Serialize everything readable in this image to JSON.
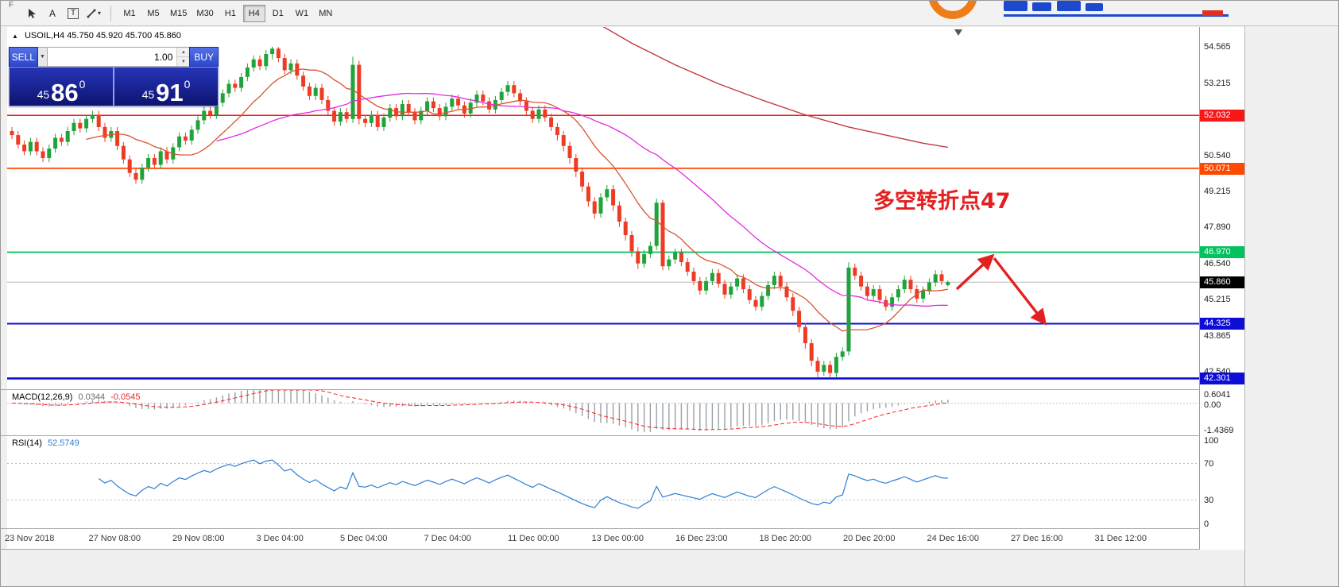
{
  "toolbar": {
    "partial_glyph": "F",
    "text_tool_glyph": "A",
    "label_tool_glyph": "T",
    "shapes_caret": "▾",
    "timeframes": [
      "M1",
      "M5",
      "M15",
      "M30",
      "H1",
      "H4",
      "D1",
      "W1",
      "MN"
    ],
    "active_timeframe": "H4"
  },
  "icons": {
    "collapse": "▲",
    "caret_down": "▼",
    "spin_up": "▲",
    "spin_down": "▼"
  },
  "symbol_header": "USOIL,H4 45.750 45.920 45.700 45.860",
  "one_click": {
    "sell_label": "SELL",
    "buy_label": "BUY",
    "volume": "1.00",
    "bid_small": "45",
    "bid_big": "86",
    "bid_sup": "0",
    "ask_small": "45",
    "ask_big": "91",
    "ask_sup": "0"
  },
  "chart_data": {
    "type": "candlestick",
    "symbol": "USOIL",
    "timeframe": "H4",
    "y_range": [
      41.9,
      55.3
    ],
    "y_ticks": [
      54.565,
      53.215,
      50.54,
      49.215,
      47.89,
      46.54,
      45.215,
      43.865,
      42.54
    ],
    "levels": [
      {
        "price": 52.032,
        "label": "52.032",
        "color": "#f81616",
        "width": 1.5
      },
      {
        "price": 50.071,
        "label": "50.071",
        "color": "#ff4800",
        "width": 1.8
      },
      {
        "price": 46.97,
        "label": "46.970",
        "color": "#00c25e",
        "width": 1.8
      },
      {
        "price": 44.325,
        "label": "44.325",
        "color": "#0d0dd6",
        "width": 2
      },
      {
        "price": 42.301,
        "label": "42.301",
        "color": "#0d0dd6",
        "width": 2.6
      }
    ],
    "current_price": {
      "price": 45.86,
      "label": "45.860",
      "line_color": "#b8b8b8",
      "box_color": "#000000"
    },
    "colors": {
      "up": "#1fa33a",
      "down": "#ee3b24",
      "ma_fast": "#d9542e",
      "ma_mid": "#e32ae3",
      "ma_long": "#c03a3a"
    },
    "shift_marker": {
      "x": 1197
    },
    "ohlc": [
      [
        51.45,
        51.6,
        51.15,
        51.3
      ],
      [
        51.3,
        51.45,
        50.8,
        50.95
      ],
      [
        50.95,
        51.1,
        50.55,
        50.7
      ],
      [
        50.7,
        51.2,
        50.55,
        51.05
      ],
      [
        51.05,
        51.2,
        50.55,
        50.7
      ],
      [
        50.7,
        50.85,
        50.3,
        50.45
      ],
      [
        50.45,
        50.95,
        50.3,
        50.8
      ],
      [
        50.8,
        51.35,
        50.65,
        51.2
      ],
      [
        51.2,
        51.35,
        50.9,
        51.05
      ],
      [
        51.05,
        51.6,
        50.9,
        51.45
      ],
      [
        51.45,
        51.9,
        51.3,
        51.75
      ],
      [
        51.75,
        51.9,
        51.4,
        51.55
      ],
      [
        51.55,
        52.05,
        51.4,
        51.9
      ],
      [
        51.9,
        52.2,
        51.75,
        52.05
      ],
      [
        52.05,
        52.2,
        51.45,
        51.6
      ],
      [
        51.6,
        51.75,
        51.05,
        51.2
      ],
      [
        51.2,
        51.6,
        51.05,
        51.45
      ],
      [
        51.45,
        51.6,
        50.75,
        50.9
      ],
      [
        50.9,
        51.05,
        50.25,
        50.4
      ],
      [
        50.4,
        50.55,
        49.75,
        49.9
      ],
      [
        49.9,
        50.05,
        49.5,
        49.65
      ],
      [
        49.65,
        50.25,
        49.5,
        50.1
      ],
      [
        50.1,
        50.6,
        49.95,
        50.45
      ],
      [
        50.45,
        50.6,
        50.05,
        50.2
      ],
      [
        50.2,
        50.85,
        50.05,
        50.7
      ],
      [
        50.7,
        50.85,
        50.25,
        50.4
      ],
      [
        50.4,
        51.0,
        50.25,
        50.85
      ],
      [
        50.85,
        51.4,
        50.7,
        51.25
      ],
      [
        51.25,
        51.4,
        50.95,
        51.1
      ],
      [
        51.1,
        51.65,
        50.95,
        51.5
      ],
      [
        51.5,
        52.0,
        51.35,
        51.85
      ],
      [
        51.85,
        52.35,
        51.7,
        52.2
      ],
      [
        52.2,
        52.35,
        51.9,
        52.05
      ],
      [
        52.05,
        52.65,
        51.9,
        52.5
      ],
      [
        52.5,
        53.0,
        52.35,
        52.85
      ],
      [
        52.85,
        53.35,
        52.7,
        53.2
      ],
      [
        53.2,
        53.35,
        52.9,
        53.05
      ],
      [
        53.05,
        53.6,
        52.9,
        53.45
      ],
      [
        53.45,
        53.95,
        53.3,
        53.8
      ],
      [
        53.8,
        54.25,
        53.65,
        54.1
      ],
      [
        54.1,
        54.25,
        53.7,
        53.85
      ],
      [
        53.85,
        54.45,
        53.7,
        54.3
      ],
      [
        54.3,
        54.57,
        54.1,
        54.5
      ],
      [
        54.5,
        54.56,
        54.0,
        54.15
      ],
      [
        54.15,
        54.3,
        53.55,
        53.7
      ],
      [
        53.7,
        54.1,
        53.55,
        53.95
      ],
      [
        53.95,
        54.1,
        53.35,
        53.5
      ],
      [
        53.5,
        53.65,
        52.95,
        53.1
      ],
      [
        53.1,
        53.25,
        52.6,
        52.75
      ],
      [
        52.75,
        53.2,
        52.6,
        53.05
      ],
      [
        53.05,
        53.2,
        52.45,
        52.6
      ],
      [
        52.6,
        52.75,
        52.05,
        52.2
      ],
      [
        52.2,
        52.35,
        51.65,
        51.8
      ],
      [
        51.8,
        52.3,
        51.65,
        52.15
      ],
      [
        52.15,
        52.3,
        51.75,
        51.9
      ],
      [
        51.9,
        54.2,
        51.75,
        53.9
      ],
      [
        53.9,
        54.05,
        51.7,
        51.9
      ],
      [
        51.9,
        52.05,
        51.6,
        51.75
      ],
      [
        51.75,
        52.2,
        51.6,
        52.05
      ],
      [
        52.05,
        52.2,
        51.45,
        51.6
      ],
      [
        51.6,
        52.1,
        51.45,
        51.95
      ],
      [
        51.95,
        52.45,
        51.8,
        52.3
      ],
      [
        52.3,
        52.45,
        51.85,
        52.0
      ],
      [
        52.0,
        52.6,
        51.85,
        52.45
      ],
      [
        52.45,
        52.6,
        52.0,
        52.15
      ],
      [
        52.15,
        52.3,
        51.7,
        51.85
      ],
      [
        51.85,
        52.35,
        51.7,
        52.2
      ],
      [
        52.2,
        52.7,
        52.05,
        52.55
      ],
      [
        52.55,
        52.7,
        52.15,
        52.3
      ],
      [
        52.3,
        52.45,
        51.85,
        52.0
      ],
      [
        52.0,
        52.5,
        51.85,
        52.35
      ],
      [
        52.35,
        52.8,
        52.2,
        52.65
      ],
      [
        52.65,
        52.8,
        52.25,
        52.4
      ],
      [
        52.4,
        52.55,
        51.95,
        52.1
      ],
      [
        52.1,
        52.65,
        51.95,
        52.5
      ],
      [
        52.5,
        52.95,
        52.35,
        52.8
      ],
      [
        52.8,
        52.95,
        52.4,
        52.55
      ],
      [
        52.55,
        52.7,
        52.1,
        52.25
      ],
      [
        52.25,
        52.75,
        52.1,
        52.6
      ],
      [
        52.6,
        53.05,
        52.45,
        52.9
      ],
      [
        52.9,
        53.3,
        52.75,
        53.15
      ],
      [
        53.15,
        53.3,
        52.7,
        52.85
      ],
      [
        52.85,
        53.0,
        52.4,
        52.55
      ],
      [
        52.55,
        52.7,
        52.05,
        52.2
      ],
      [
        52.2,
        52.35,
        51.75,
        51.9
      ],
      [
        51.9,
        52.4,
        51.75,
        52.25
      ],
      [
        52.25,
        52.4,
        51.8,
        51.95
      ],
      [
        51.95,
        52.1,
        51.45,
        51.6
      ],
      [
        51.6,
        51.75,
        51.1,
        51.3
      ],
      [
        51.3,
        51.45,
        50.7,
        50.9
      ],
      [
        50.9,
        51.05,
        50.25,
        50.45
      ],
      [
        50.45,
        50.6,
        49.75,
        49.95
      ],
      [
        49.95,
        50.1,
        49.2,
        49.4
      ],
      [
        49.4,
        49.55,
        48.65,
        48.85
      ],
      [
        48.85,
        49.0,
        48.2,
        48.4
      ],
      [
        48.4,
        49.15,
        48.25,
        49.0
      ],
      [
        49.0,
        49.45,
        48.85,
        49.3
      ],
      [
        49.3,
        49.45,
        48.5,
        48.7
      ],
      [
        48.7,
        48.85,
        47.9,
        48.1
      ],
      [
        48.1,
        48.25,
        47.4,
        47.6
      ],
      [
        47.6,
        47.75,
        46.8,
        47.0
      ],
      [
        47.0,
        47.15,
        46.35,
        46.55
      ],
      [
        46.55,
        47.05,
        46.4,
        46.9
      ],
      [
        46.9,
        47.35,
        46.75,
        47.2
      ],
      [
        47.2,
        48.95,
        47.05,
        48.8
      ],
      [
        48.8,
        48.9,
        46.3,
        46.45
      ],
      [
        46.45,
        46.85,
        46.3,
        46.7
      ],
      [
        46.7,
        47.1,
        46.55,
        46.95
      ],
      [
        46.95,
        47.1,
        46.45,
        46.6
      ],
      [
        46.6,
        46.75,
        46.1,
        46.25
      ],
      [
        46.25,
        46.4,
        45.75,
        45.9
      ],
      [
        45.9,
        46.05,
        45.4,
        45.55
      ],
      [
        45.55,
        46.05,
        45.4,
        45.9
      ],
      [
        45.9,
        46.35,
        45.75,
        46.2
      ],
      [
        46.2,
        46.35,
        45.65,
        45.8
      ],
      [
        45.8,
        45.95,
        45.25,
        45.4
      ],
      [
        45.4,
        45.85,
        45.25,
        45.7
      ],
      [
        45.7,
        46.15,
        45.55,
        46.0
      ],
      [
        46.0,
        46.15,
        45.45,
        45.6
      ],
      [
        45.6,
        45.75,
        45.05,
        45.2
      ],
      [
        45.2,
        45.35,
        44.8,
        44.95
      ],
      [
        44.95,
        45.5,
        44.8,
        45.35
      ],
      [
        45.35,
        45.9,
        45.2,
        45.75
      ],
      [
        45.75,
        46.25,
        45.6,
        46.1
      ],
      [
        46.1,
        46.25,
        45.55,
        45.7
      ],
      [
        45.7,
        45.85,
        45.15,
        45.3
      ],
      [
        45.3,
        45.45,
        44.6,
        44.8
      ],
      [
        44.8,
        44.95,
        44.0,
        44.2
      ],
      [
        44.2,
        44.35,
        43.4,
        43.6
      ],
      [
        43.6,
        43.75,
        42.75,
        42.95
      ],
      [
        42.95,
        43.1,
        42.35,
        42.55
      ],
      [
        42.55,
        42.95,
        42.4,
        42.8
      ],
      [
        42.8,
        42.95,
        42.31,
        42.5
      ],
      [
        42.5,
        43.25,
        42.35,
        43.1
      ],
      [
        43.1,
        43.45,
        42.95,
        43.3
      ],
      [
        43.3,
        46.6,
        43.15,
        46.4
      ],
      [
        46.4,
        46.55,
        45.95,
        46.1
      ],
      [
        46.1,
        46.25,
        45.55,
        45.7
      ],
      [
        45.7,
        45.85,
        45.2,
        45.35
      ],
      [
        45.35,
        45.75,
        45.2,
        45.6
      ],
      [
        45.6,
        45.75,
        45.05,
        45.2
      ],
      [
        45.2,
        45.35,
        44.8,
        44.95
      ],
      [
        44.95,
        45.45,
        44.8,
        45.3
      ],
      [
        45.3,
        45.75,
        45.15,
        45.6
      ],
      [
        45.6,
        46.1,
        45.45,
        45.95
      ],
      [
        45.95,
        46.1,
        45.45,
        45.6
      ],
      [
        45.6,
        45.75,
        45.1,
        45.25
      ],
      [
        45.25,
        45.7,
        45.1,
        45.55
      ],
      [
        45.55,
        46.0,
        45.4,
        45.85
      ],
      [
        45.85,
        46.3,
        45.7,
        46.15
      ],
      [
        46.15,
        46.3,
        45.75,
        45.9
      ],
      [
        45.75,
        45.92,
        45.7,
        45.86
      ]
    ],
    "long_ma_points": [
      [
        94,
        55.5
      ],
      [
        100,
        54.7
      ],
      [
        107,
        53.9
      ],
      [
        114,
        53.2
      ],
      [
        121,
        52.6
      ],
      [
        128,
        52.05
      ],
      [
        135,
        51.6
      ],
      [
        142,
        51.25
      ],
      [
        147,
        51.0
      ],
      [
        151,
        50.85
      ]
    ],
    "annotation": {
      "text": "多空转折点47",
      "color": "#e41f1f",
      "x": 1090,
      "y": 228
    },
    "arrows": [
      [
        1195,
        330,
        1240,
        288
      ],
      [
        1242,
        291,
        1306,
        373
      ]
    ],
    "macd": {
      "label": "MACD(12,26,9)",
      "value_main": "0.0344",
      "value_signal": "-0.0545",
      "range": [
        0.6041,
        -1.4369
      ],
      "tick_top": "0.6041",
      "tick_zero": "0.00",
      "tick_bottom": "-1.4369"
    },
    "rsi": {
      "label": "RSI(14)",
      "value": "52.5749",
      "levels": [
        70,
        30
      ],
      "ticks": [
        {
          "v": 100,
          "label": "100"
        },
        {
          "v": 70,
          "label": "70"
        },
        {
          "v": 30,
          "label": "30"
        },
        {
          "v": 0,
          "label": "0"
        }
      ]
    },
    "x_labels": [
      "23 Nov 2018",
      "27 Nov 08:00",
      "29 Nov 08:00",
      "3 Dec 04:00",
      "5 Dec 04:00",
      "7 Dec 04:00",
      "11 Dec 00:00",
      "13 Dec 00:00",
      "16 Dec 23:00",
      "18 Dec 20:00",
      "20 Dec 20:00",
      "24 Dec 16:00",
      "27 Dec 16:00",
      "31 Dec 12:00"
    ]
  }
}
